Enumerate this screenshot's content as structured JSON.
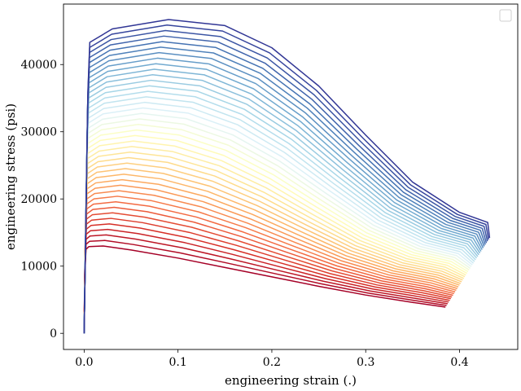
{
  "chart_data": {
    "type": "line",
    "title": "",
    "xlabel": "engineering strain (.)",
    "ylabel": "engineering stress (psi)",
    "xlim": [
      -0.022,
      0.462
    ],
    "ylim": [
      -2400,
      49000
    ],
    "xticks": [
      {
        "value": 0.0,
        "label": "0.0"
      },
      {
        "value": 0.1,
        "label": "0.1"
      },
      {
        "value": 0.2,
        "label": "0.2"
      },
      {
        "value": 0.3,
        "label": "0.3"
      },
      {
        "value": 0.4,
        "label": "0.4"
      }
    ],
    "yticks": [
      {
        "value": 0,
        "label": "0"
      },
      {
        "value": 10000,
        "label": "10000"
      },
      {
        "value": 20000,
        "label": "20000"
      },
      {
        "value": 30000,
        "label": "30000"
      },
      {
        "value": 40000,
        "label": "40000"
      }
    ],
    "grid": false,
    "legend": {
      "placement": "top-right",
      "entries": []
    },
    "colormap": "RdYlBu",
    "series_count": 42,
    "series_envelope": {
      "first": {
        "color": "#a50026",
        "points": [
          [
            0.0,
            0
          ],
          [
            0.0005,
            8000
          ],
          [
            0.002,
            12500
          ],
          [
            0.005,
            12900
          ],
          [
            0.02,
            13000
          ],
          [
            0.05,
            12400
          ],
          [
            0.1,
            11200
          ],
          [
            0.15,
            9800
          ],
          [
            0.2,
            8400
          ],
          [
            0.25,
            7000
          ],
          [
            0.3,
            5700
          ],
          [
            0.35,
            4600
          ],
          [
            0.385,
            3900
          ]
        ]
      },
      "last": {
        "color": "#313695",
        "points": [
          [
            0.0,
            0
          ],
          [
            0.004,
            36000
          ],
          [
            0.006,
            43300
          ],
          [
            0.03,
            45300
          ],
          [
            0.09,
            46700
          ],
          [
            0.15,
            45800
          ],
          [
            0.2,
            42500
          ],
          [
            0.25,
            36800
          ],
          [
            0.3,
            29500
          ],
          [
            0.35,
            22500
          ],
          [
            0.4,
            18000
          ],
          [
            0.43,
            16500
          ],
          [
            0.432,
            14200
          ]
        ]
      }
    }
  }
}
